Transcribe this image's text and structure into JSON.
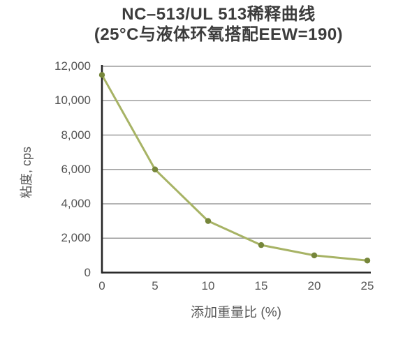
{
  "chart_data": {
    "type": "line",
    "title": "NC–513/UL 513稀释曲线",
    "subtitle": "(25°C与液体环氧搭配EEW=190)",
    "xlabel": "添加重量比 (%)",
    "ylabel": "粘度, cps",
    "x": [
      0,
      5,
      10,
      15,
      20,
      25
    ],
    "values": [
      11500,
      6000,
      3000,
      1600,
      1000,
      700
    ],
    "xlim": [
      0,
      25
    ],
    "ylim": [
      0,
      12000
    ],
    "xticks": [
      0,
      5,
      10,
      15,
      20,
      25
    ],
    "yticks": [
      0,
      2000,
      4000,
      6000,
      8000,
      10000,
      12000
    ],
    "xtick_labels": [
      "0",
      "5",
      "10",
      "15",
      "20",
      "25"
    ],
    "ytick_labels": [
      "0",
      "2,000",
      "4,000",
      "6,000",
      "8,000",
      "10,000",
      "12,000"
    ],
    "grid": "horizontal",
    "legend": "none",
    "colors": {
      "line": "#a7b365",
      "marker": "#76863a",
      "grid": "#9c9c9c",
      "axis": "#262626",
      "title": "#3c3c3c",
      "label": "#575757",
      "background": "#ffffff"
    }
  }
}
